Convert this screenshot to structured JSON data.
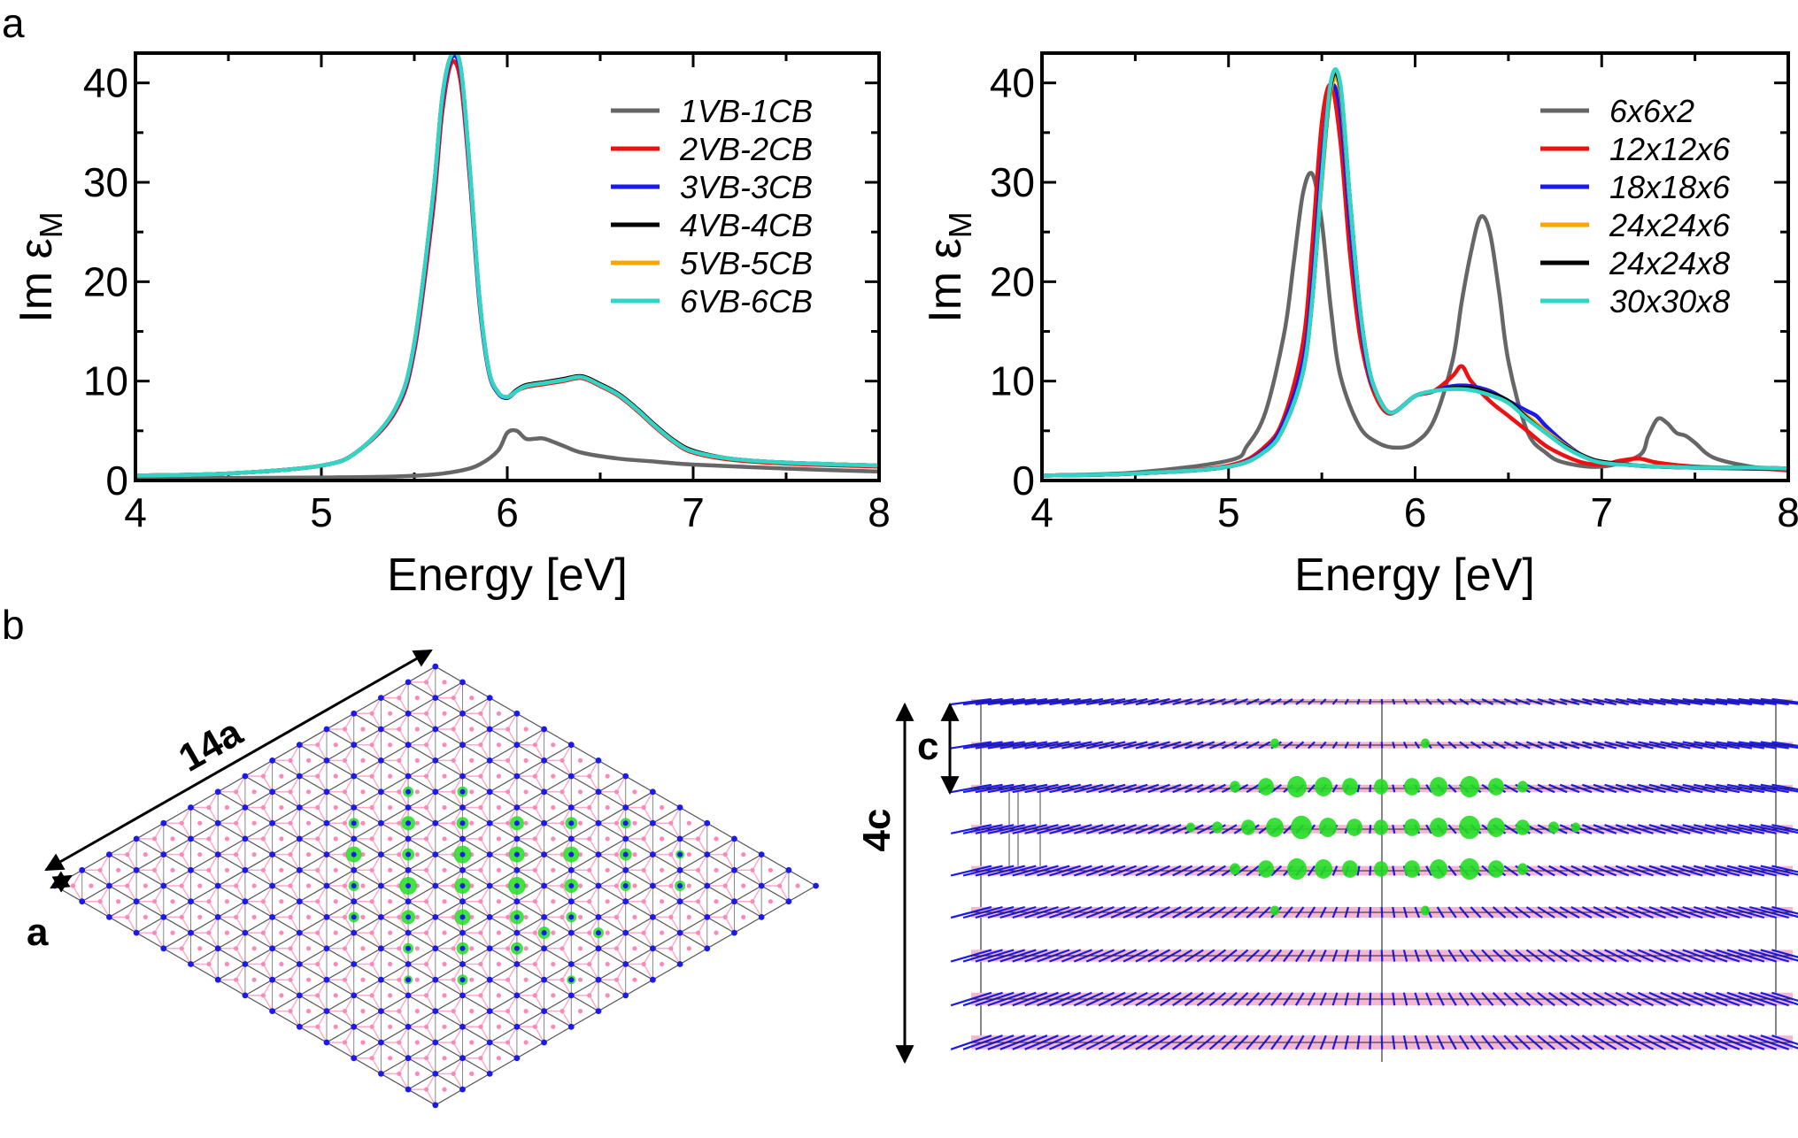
{
  "figure": {
    "panel_a_label": "a",
    "panel_b_label": "b",
    "dim_14a": "14a",
    "dim_a": "a",
    "dim_c": "c",
    "dim_4c": "4c",
    "colors": {
      "gray": "#666666",
      "red": "#ee1111",
      "blue": "#1a1aee",
      "black": "#000000",
      "orange": "#ffa500",
      "cyan": "#30d5c8",
      "green": "#22dd22",
      "atomBlue": "#1a1aee",
      "bondPink": "#ffaacc"
    }
  },
  "chart_data": [
    {
      "type": "line",
      "title": "",
      "xlabel": "Energy [eV]",
      "ylabel_main": "Im ε",
      "ylabel_sub": "M",
      "xlim": [
        4,
        8
      ],
      "ylim": [
        0,
        43
      ],
      "xticks": [
        "4",
        "5",
        "6",
        "7",
        "8"
      ],
      "yticks": [
        "0",
        "10",
        "20",
        "30",
        "40"
      ],
      "legend_position": "top-right",
      "series": [
        {
          "name": "1VB-1CB",
          "color": "#666666",
          "x": [
            4,
            4.5,
            5,
            5.4,
            5.6,
            5.75,
            5.85,
            5.95,
            6.0,
            6.05,
            6.1,
            6.15,
            6.2,
            6.3,
            6.4,
            6.6,
            6.8,
            7.0,
            7.5,
            8.0
          ],
          "y": [
            0.2,
            0.25,
            0.3,
            0.4,
            0.6,
            1.0,
            1.6,
            3.0,
            4.8,
            5.0,
            4.2,
            4.2,
            4.2,
            3.5,
            2.8,
            2.2,
            1.9,
            1.6,
            1.2,
            0.9
          ]
        },
        {
          "name": "2VB-2CB",
          "color": "#ee1111",
          "x": [
            4,
            4.5,
            5,
            5.2,
            5.4,
            5.5,
            5.6,
            5.65,
            5.7,
            5.75,
            5.8,
            5.85,
            5.9,
            5.95,
            6.0,
            6.05,
            6.1,
            6.2,
            6.3,
            6.4,
            6.5,
            6.6,
            6.7,
            6.8,
            6.9,
            7.0,
            7.2,
            7.5,
            8.0
          ],
          "y": [
            0.5,
            0.7,
            1.5,
            3.0,
            7.0,
            13.0,
            27.0,
            37.0,
            42.0,
            40.0,
            30.0,
            18.0,
            11.0,
            8.8,
            8.3,
            9.0,
            9.4,
            9.7,
            10.0,
            10.3,
            9.5,
            8.5,
            7.0,
            5.3,
            3.8,
            2.8,
            2.1,
            1.7,
            1.4
          ]
        },
        {
          "name": "3VB-3CB",
          "color": "#1a1aee",
          "x": [
            4,
            4.5,
            5,
            5.2,
            5.4,
            5.5,
            5.6,
            5.65,
            5.7,
            5.75,
            5.8,
            5.85,
            5.9,
            5.95,
            6.0,
            6.05,
            6.1,
            6.2,
            6.3,
            6.4,
            6.5,
            6.6,
            6.7,
            6.8,
            6.9,
            7.0,
            7.2,
            7.5,
            8.0
          ],
          "y": [
            0.5,
            0.7,
            1.5,
            3.0,
            7.2,
            13.5,
            28.0,
            38.0,
            42.5,
            41.0,
            30.5,
            18.0,
            11.0,
            8.8,
            8.3,
            9.0,
            9.5,
            9.8,
            10.1,
            10.4,
            9.6,
            8.6,
            7.1,
            5.4,
            3.9,
            2.9,
            2.2,
            1.8,
            1.5
          ]
        },
        {
          "name": "4VB-4CB",
          "color": "#000000",
          "x": [
            4,
            4.5,
            5,
            5.2,
            5.4,
            5.5,
            5.6,
            5.65,
            5.7,
            5.75,
            5.8,
            5.85,
            5.9,
            5.95,
            6.0,
            6.05,
            6.1,
            6.2,
            6.3,
            6.4,
            6.5,
            6.6,
            6.7,
            6.8,
            6.9,
            7.0,
            7.2,
            7.5,
            8.0
          ],
          "y": [
            0.5,
            0.7,
            1.5,
            3.0,
            7.3,
            13.8,
            28.5,
            38.5,
            42.8,
            41.5,
            31.0,
            18.5,
            11.2,
            8.9,
            8.4,
            9.1,
            9.6,
            9.9,
            10.2,
            10.5,
            9.7,
            8.7,
            7.2,
            5.5,
            4.0,
            3.0,
            2.2,
            1.8,
            1.5
          ]
        },
        {
          "name": "5VB-5CB",
          "color": "#ffa500",
          "x": [
            4,
            4.5,
            5,
            5.2,
            5.4,
            5.5,
            5.6,
            5.65,
            5.7,
            5.75,
            5.8,
            5.85,
            5.9,
            5.95,
            6.0,
            6.05,
            6.1,
            6.2,
            6.3,
            6.4,
            6.5,
            6.6,
            6.7,
            6.8,
            6.9,
            7.0,
            7.2,
            7.5,
            8.0
          ],
          "y": [
            0.5,
            0.7,
            1.5,
            3.0,
            7.3,
            13.8,
            28.5,
            38.5,
            42.8,
            41.5,
            31.0,
            18.5,
            11.2,
            8.9,
            8.4,
            9.0,
            9.5,
            9.8,
            10.1,
            10.4,
            9.6,
            8.6,
            7.1,
            5.4,
            3.9,
            2.9,
            2.2,
            1.8,
            1.5
          ]
        },
        {
          "name": "6VB-6CB",
          "color": "#30d5c8",
          "x": [
            4,
            4.5,
            5,
            5.2,
            5.4,
            5.5,
            5.6,
            5.65,
            5.7,
            5.75,
            5.8,
            5.85,
            5.9,
            5.95,
            6.0,
            6.05,
            6.1,
            6.2,
            6.3,
            6.4,
            6.5,
            6.6,
            6.7,
            6.8,
            6.9,
            7.0,
            7.2,
            7.5,
            8.0
          ],
          "y": [
            0.5,
            0.7,
            1.5,
            3.0,
            7.3,
            13.8,
            28.5,
            38.5,
            42.8,
            41.5,
            31.0,
            18.5,
            11.2,
            8.9,
            8.4,
            9.0,
            9.5,
            9.8,
            10.1,
            10.4,
            9.6,
            8.6,
            7.1,
            5.4,
            3.9,
            2.9,
            2.2,
            1.8,
            1.5
          ]
        }
      ]
    },
    {
      "type": "line",
      "title": "",
      "xlabel": "Energy [eV]",
      "ylabel_main": "Im ε",
      "ylabel_sub": "M",
      "xlim": [
        4,
        8
      ],
      "ylim": [
        0,
        43
      ],
      "xticks": [
        "4",
        "5",
        "6",
        "7",
        "8"
      ],
      "yticks": [
        "0",
        "10",
        "20",
        "30",
        "40"
      ],
      "legend_position": "top-right",
      "series": [
        {
          "name": "6x6x2",
          "color": "#666666",
          "x": [
            4,
            4.5,
            5,
            5.1,
            5.2,
            5.3,
            5.35,
            5.4,
            5.45,
            5.5,
            5.55,
            5.6,
            5.7,
            5.8,
            5.9,
            6.0,
            6.1,
            6.2,
            6.25,
            6.3,
            6.35,
            6.4,
            6.45,
            6.5,
            6.6,
            6.7,
            6.8,
            7.0,
            7.2,
            7.25,
            7.3,
            7.35,
            7.4,
            7.45,
            7.5,
            7.6,
            7.8,
            8.0
          ],
          "y": [
            0.5,
            0.8,
            2.0,
            3.5,
            7.0,
            15.0,
            22.0,
            29.0,
            30.8,
            26.0,
            17.0,
            10.5,
            5.5,
            3.8,
            3.3,
            3.8,
            6.0,
            12.0,
            18.0,
            23.0,
            26.5,
            25.0,
            19.0,
            12.0,
            5.0,
            2.8,
            1.8,
            1.4,
            2.5,
            4.5,
            6.2,
            5.8,
            4.8,
            4.5,
            3.8,
            2.3,
            1.4,
            1.0
          ]
        },
        {
          "name": "12x12x6",
          "color": "#ee1111",
          "x": [
            4,
            4.5,
            5,
            5.2,
            5.3,
            5.4,
            5.45,
            5.5,
            5.55,
            5.6,
            5.65,
            5.7,
            5.75,
            5.8,
            5.85,
            5.9,
            6.0,
            6.1,
            6.2,
            6.25,
            6.3,
            6.4,
            6.5,
            6.6,
            6.7,
            6.8,
            6.9,
            7.0,
            7.1,
            7.2,
            7.3,
            7.5,
            7.8,
            8.0
          ],
          "y": [
            0.5,
            0.7,
            1.5,
            3.5,
            6.5,
            14.0,
            24.0,
            36.0,
            39.8,
            34.0,
            23.0,
            15.0,
            10.5,
            8.0,
            6.8,
            7.0,
            8.5,
            9.0,
            10.5,
            11.5,
            10.0,
            8.0,
            6.5,
            5.0,
            3.5,
            2.5,
            1.8,
            1.6,
            2.0,
            2.2,
            1.8,
            1.4,
            1.2,
            1.1
          ]
        },
        {
          "name": "18x18x6",
          "color": "#1a1aee",
          "x": [
            4,
            4.5,
            5,
            5.2,
            5.3,
            5.4,
            5.45,
            5.5,
            5.55,
            5.6,
            5.65,
            5.7,
            5.75,
            5.8,
            5.85,
            5.9,
            6.0,
            6.1,
            6.2,
            6.3,
            6.4,
            6.5,
            6.6,
            6.65,
            6.7,
            6.8,
            6.9,
            7.0,
            7.2,
            7.5,
            7.8,
            8.0
          ],
          "y": [
            0.5,
            0.7,
            1.4,
            3.2,
            6.0,
            12.0,
            20.0,
            32.0,
            39.5,
            37.0,
            26.0,
            17.0,
            11.0,
            8.5,
            7.0,
            7.0,
            8.5,
            9.0,
            9.5,
            9.5,
            9.0,
            8.0,
            7.0,
            6.5,
            5.5,
            3.8,
            2.5,
            1.9,
            1.5,
            1.3,
            1.2,
            1.2
          ]
        },
        {
          "name": "24x24x6",
          "color": "#ffa500",
          "x": [
            4,
            4.5,
            5,
            5.2,
            5.3,
            5.4,
            5.45,
            5.5,
            5.55,
            5.6,
            5.65,
            5.7,
            5.75,
            5.8,
            5.85,
            5.9,
            6.0,
            6.1,
            6.2,
            6.3,
            6.4,
            6.5,
            6.6,
            6.7,
            6.8,
            6.9,
            7.0,
            7.2,
            7.5,
            7.8,
            8.0
          ],
          "y": [
            0.5,
            0.7,
            1.4,
            3.0,
            5.5,
            11.0,
            18.5,
            30.0,
            39.5,
            39.0,
            28.0,
            18.0,
            11.5,
            8.5,
            7.0,
            7.0,
            8.5,
            9.0,
            9.3,
            9.3,
            8.8,
            7.8,
            6.5,
            5.0,
            3.6,
            2.5,
            1.9,
            1.5,
            1.3,
            1.3,
            1.2
          ]
        },
        {
          "name": "24x24x8",
          "color": "#000000",
          "x": [
            4,
            4.5,
            5,
            5.2,
            5.3,
            5.4,
            5.45,
            5.5,
            5.55,
            5.6,
            5.65,
            5.7,
            5.75,
            5.8,
            5.85,
            5.9,
            6.0,
            6.1,
            6.2,
            6.3,
            6.4,
            6.5,
            6.6,
            6.7,
            6.8,
            6.9,
            7.0,
            7.2,
            7.5,
            7.8,
            8.0
          ],
          "y": [
            0.5,
            0.7,
            1.4,
            3.0,
            5.5,
            11.0,
            18.5,
            30.5,
            40.0,
            39.5,
            28.5,
            18.0,
            11.5,
            8.5,
            7.0,
            7.0,
            8.5,
            9.0,
            9.3,
            9.3,
            8.8,
            8.0,
            6.3,
            4.8,
            3.5,
            2.5,
            1.9,
            1.5,
            1.3,
            1.3,
            1.2
          ]
        },
        {
          "name": "30x30x8",
          "color": "#30d5c8",
          "x": [
            4,
            4.5,
            5,
            5.2,
            5.3,
            5.4,
            5.45,
            5.5,
            5.55,
            5.6,
            5.65,
            5.7,
            5.75,
            5.8,
            5.85,
            5.9,
            6.0,
            6.1,
            6.2,
            6.3,
            6.4,
            6.5,
            6.6,
            6.7,
            6.8,
            6.9,
            7.0,
            7.2,
            7.5,
            7.8,
            8.0
          ],
          "y": [
            0.5,
            0.7,
            1.4,
            3.0,
            5.5,
            11.0,
            18.5,
            30.5,
            40.3,
            39.8,
            28.5,
            18.0,
            11.5,
            8.5,
            7.0,
            7.0,
            8.5,
            9.0,
            9.2,
            9.1,
            8.6,
            7.8,
            6.2,
            4.8,
            3.4,
            2.4,
            1.8,
            1.5,
            1.3,
            1.3,
            1.2
          ]
        }
      ]
    }
  ]
}
